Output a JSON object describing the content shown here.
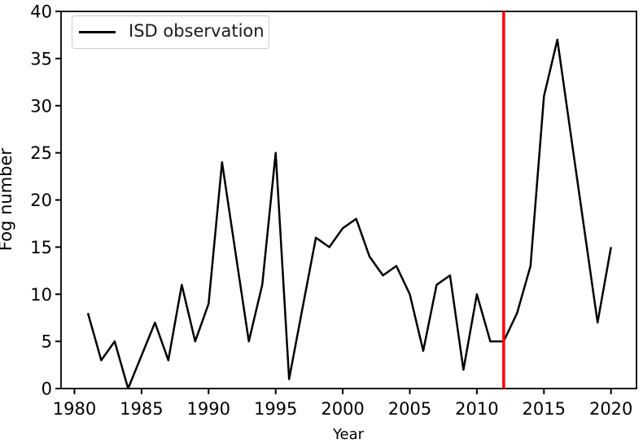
{
  "figure": {
    "background_color": "#ffffff",
    "text_color": "#000000"
  },
  "chart_data": {
    "type": "line",
    "title": "",
    "xlabel": "Year",
    "ylabel": "Fog number",
    "xlim": [
      1979.0,
      2021.9
    ],
    "ylim": [
      0,
      40
    ],
    "x_ticks": [
      1980,
      1985,
      1990,
      1995,
      2000,
      2005,
      2010,
      2015,
      2020
    ],
    "y_ticks": [
      0,
      5,
      10,
      15,
      20,
      25,
      30,
      35,
      40
    ],
    "grid": false,
    "legend": {
      "position": "upper-left",
      "entries": [
        {
          "label": "ISD observation",
          "color": "#000000"
        }
      ]
    },
    "series": [
      {
        "name": "ISD observation",
        "color": "#000000",
        "line_width": 2.5,
        "x": [
          1981,
          1982,
          1983,
          1984,
          1985,
          1986,
          1987,
          1988,
          1989,
          1990,
          1991,
          1992,
          1993,
          1994,
          1995,
          1996,
          1997,
          1998,
          1999,
          2000,
          2001,
          2002,
          2003,
          2004,
          2005,
          2006,
          2007,
          2008,
          2009,
          2010,
          2011,
          2012,
          2013,
          2014,
          2015,
          2016,
          2017,
          2018,
          2019,
          2020
        ],
        "values": [
          8,
          3,
          5,
          0,
          3.5,
          7,
          3,
          11,
          5,
          9,
          24,
          14.5,
          5,
          11,
          25,
          1,
          8.5,
          16,
          15,
          17,
          18,
          14,
          12,
          13,
          10,
          4,
          11,
          12,
          2,
          10,
          5,
          5,
          8,
          13,
          31,
          37,
          27,
          17,
          7,
          15
        ]
      }
    ],
    "annotations": [
      {
        "type": "vline",
        "x": 2012,
        "color": "#ff0000",
        "line_width": 3.5
      }
    ]
  }
}
